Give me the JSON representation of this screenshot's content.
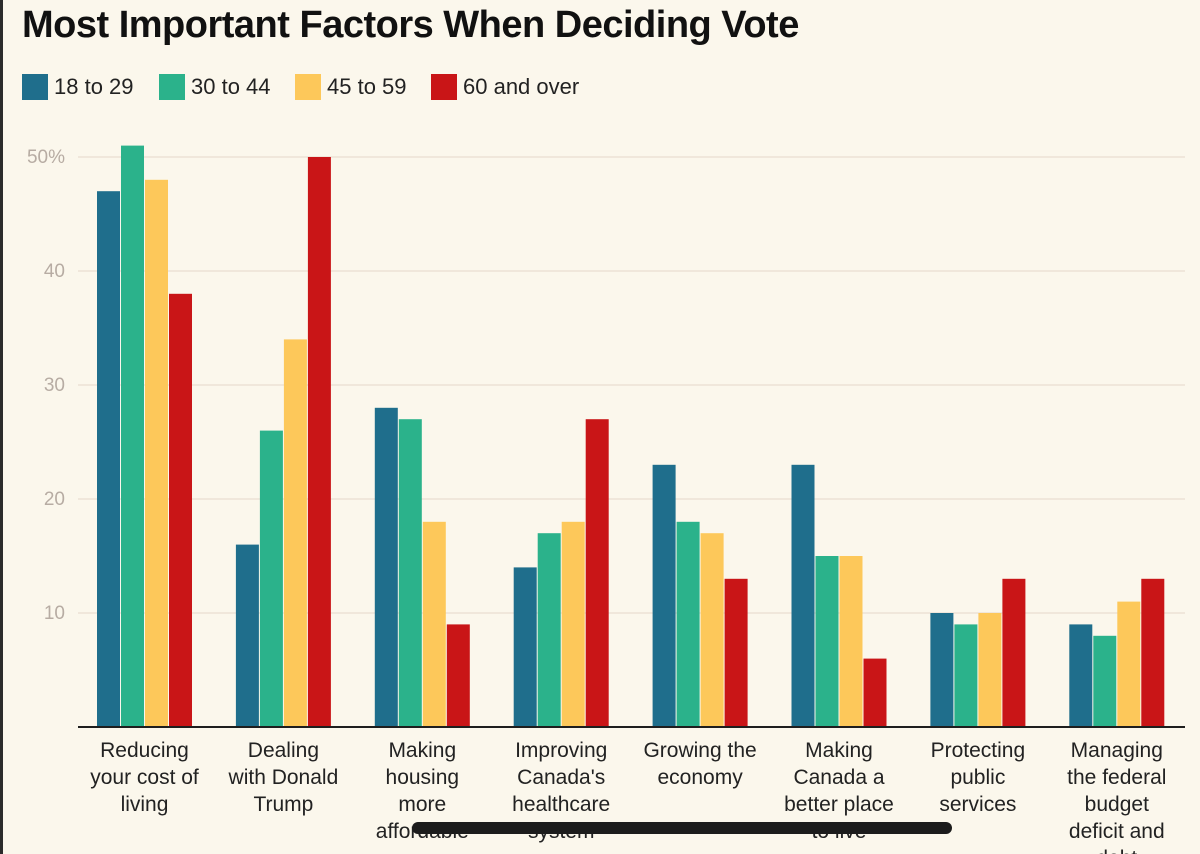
{
  "chart_data": {
    "type": "bar",
    "title": "Most Important Factors When Deciding Vote",
    "xlabel": "",
    "ylabel": "",
    "ylim": [
      0,
      50
    ],
    "yticks": [
      10,
      20,
      30,
      40,
      50
    ],
    "ytick_labels": [
      "10",
      "20",
      "30",
      "40",
      "50%"
    ],
    "grid": true,
    "legend_position": "top-left",
    "categories": [
      [
        "Reducing",
        "your cost of",
        "living"
      ],
      [
        "Dealing",
        "with Donald",
        "Trump"
      ],
      [
        "Making",
        "housing",
        "more",
        "affordable"
      ],
      [
        "Improving",
        "Canada's",
        "healthcare",
        "system"
      ],
      [
        "Growing the",
        "economy"
      ],
      [
        "Making",
        "Canada a",
        "better place",
        "to live"
      ],
      [
        "Protecting",
        "public",
        "services"
      ],
      [
        "Managing",
        "the federal",
        "budget",
        "deficit and",
        "debt"
      ]
    ],
    "series": [
      {
        "name": "18 to 29",
        "color": "#1f6e8c",
        "values": [
          47,
          16,
          28,
          14,
          23,
          23,
          10,
          9
        ]
      },
      {
        "name": "30 to 44",
        "color": "#2bb28b",
        "values": [
          51,
          26,
          27,
          17,
          18,
          15,
          9,
          8
        ]
      },
      {
        "name": "45 to 59",
        "color": "#fdc85a",
        "values": [
          48,
          34,
          18,
          18,
          17,
          15,
          10,
          11
        ]
      },
      {
        "name": "60 and over",
        "color": "#c91517",
        "values": [
          38,
          50,
          9,
          27,
          13,
          6,
          13,
          13
        ]
      }
    ]
  }
}
